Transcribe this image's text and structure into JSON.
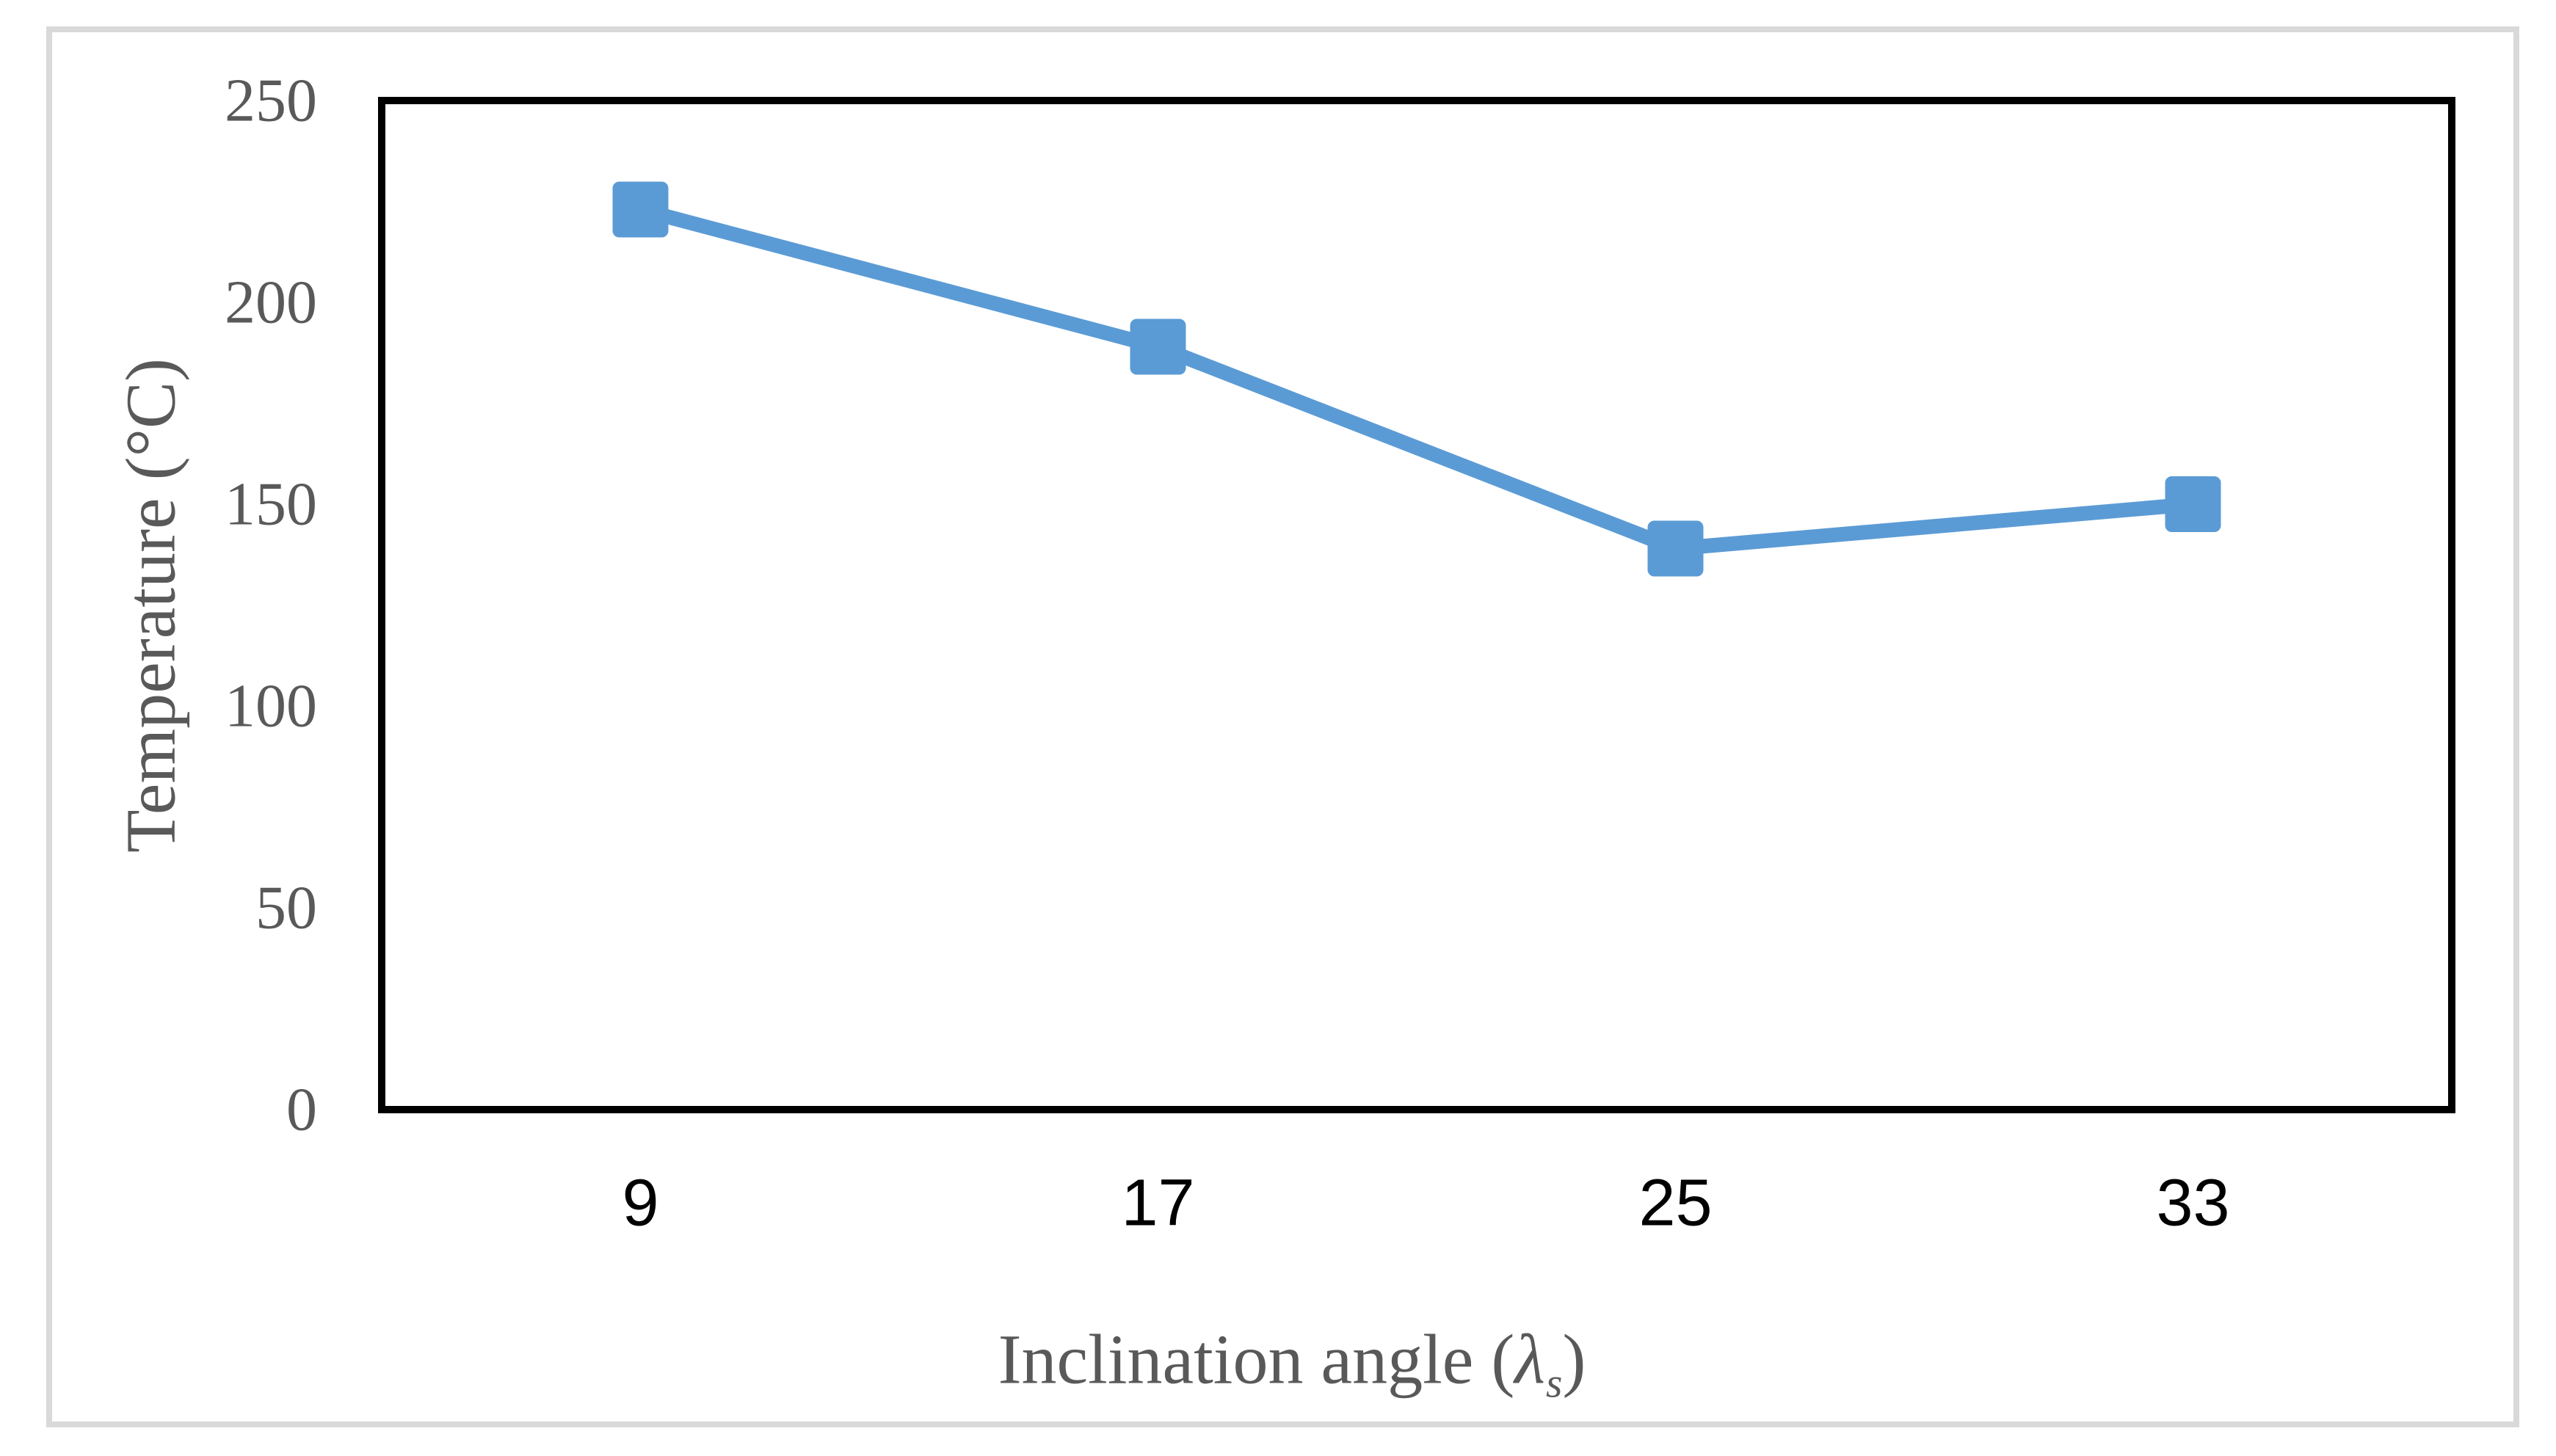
{
  "chart_data": {
    "type": "line",
    "categories": [
      "9",
      "17",
      "25",
      "33"
    ],
    "series": [
      {
        "name": "Temperature",
        "values": [
          223,
          189,
          139,
          150
        ]
      }
    ],
    "xlabel": "Inclination angle (λs)",
    "xlabel_parts": {
      "prefix": "Inclination angle (",
      "symbol": "λ",
      "subscript": "s",
      "suffix": ")"
    },
    "ylabel": "Temperature (°C)",
    "ylim": [
      0,
      250
    ],
    "yticks": [
      0,
      50,
      100,
      150,
      200,
      250
    ],
    "x_axis_type": "categorical",
    "grid": false,
    "legend_position": "none",
    "marker_shape": "square",
    "colors": {
      "line": "#5b9bd5",
      "marker": "#5b9bd5",
      "ytick_text": "#595959",
      "xtick_text": "#000000",
      "axis_title_text": "#595959",
      "plot_border": "#000000",
      "figure_border": "#d9d9d9",
      "background": "#ffffff"
    }
  }
}
